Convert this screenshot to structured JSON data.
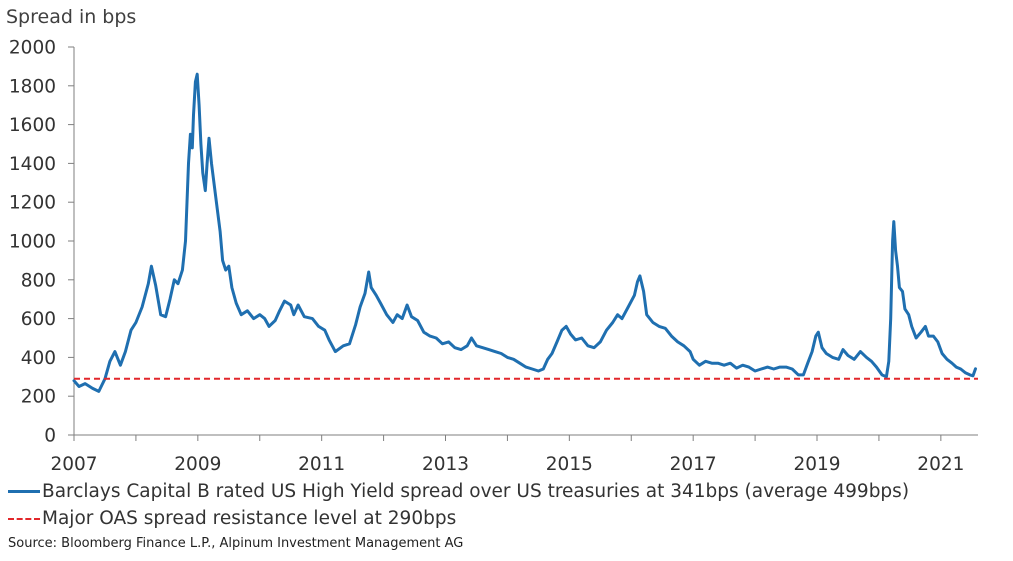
{
  "chart_data": {
    "type": "line",
    "title": "",
    "ylabel": "Spread in bps",
    "xlabel": "",
    "xlim": [
      2007.0,
      2021.6
    ],
    "ylim": [
      0,
      2000
    ],
    "yticks": [
      0,
      200,
      400,
      600,
      800,
      1000,
      1200,
      1400,
      1600,
      1800,
      2000
    ],
    "xticks": [
      2007,
      2009,
      2011,
      2013,
      2015,
      2017,
      2019,
      2021
    ],
    "grid": false,
    "legend_position": "bottom",
    "series": [
      {
        "name": "Barclays Capital B rated US High Yield spread over US treasuries at 341bps (average 499bps)",
        "color": "#1f6fb0",
        "style": "solid",
        "points": [
          [
            2007.0,
            280
          ],
          [
            2007.08,
            250
          ],
          [
            2007.18,
            265
          ],
          [
            2007.3,
            240
          ],
          [
            2007.4,
            225
          ],
          [
            2007.5,
            290
          ],
          [
            2007.58,
            380
          ],
          [
            2007.66,
            430
          ],
          [
            2007.75,
            360
          ],
          [
            2007.83,
            430
          ],
          [
            2007.92,
            540
          ],
          [
            2008.0,
            580
          ],
          [
            2008.1,
            660
          ],
          [
            2008.2,
            780
          ],
          [
            2008.25,
            870
          ],
          [
            2008.32,
            770
          ],
          [
            2008.4,
            620
          ],
          [
            2008.48,
            610
          ],
          [
            2008.55,
            700
          ],
          [
            2008.62,
            800
          ],
          [
            2008.68,
            780
          ],
          [
            2008.75,
            850
          ],
          [
            2008.8,
            1000
          ],
          [
            2008.85,
            1400
          ],
          [
            2008.88,
            1550
          ],
          [
            2008.91,
            1480
          ],
          [
            2008.93,
            1650
          ],
          [
            2008.96,
            1820
          ],
          [
            2008.99,
            1860
          ],
          [
            2009.02,
            1700
          ],
          [
            2009.05,
            1500
          ],
          [
            2009.08,
            1350
          ],
          [
            2009.12,
            1260
          ],
          [
            2009.15,
            1400
          ],
          [
            2009.18,
            1530
          ],
          [
            2009.22,
            1400
          ],
          [
            2009.3,
            1200
          ],
          [
            2009.36,
            1050
          ],
          [
            2009.4,
            900
          ],
          [
            2009.45,
            850
          ],
          [
            2009.5,
            870
          ],
          [
            2009.55,
            760
          ],
          [
            2009.62,
            680
          ],
          [
            2009.7,
            620
          ],
          [
            2009.8,
            640
          ],
          [
            2009.9,
            600
          ],
          [
            2010.0,
            620
          ],
          [
            2010.08,
            600
          ],
          [
            2010.15,
            560
          ],
          [
            2010.25,
            590
          ],
          [
            2010.32,
            640
          ],
          [
            2010.4,
            690
          ],
          [
            2010.5,
            670
          ],
          [
            2010.55,
            620
          ],
          [
            2010.62,
            670
          ],
          [
            2010.72,
            610
          ],
          [
            2010.85,
            600
          ],
          [
            2010.95,
            560
          ],
          [
            2011.05,
            540
          ],
          [
            2011.12,
            490
          ],
          [
            2011.22,
            430
          ],
          [
            2011.35,
            460
          ],
          [
            2011.45,
            470
          ],
          [
            2011.55,
            570
          ],
          [
            2011.62,
            660
          ],
          [
            2011.7,
            730
          ],
          [
            2011.76,
            840
          ],
          [
            2011.8,
            760
          ],
          [
            2011.88,
            720
          ],
          [
            2011.95,
            680
          ],
          [
            2012.05,
            620
          ],
          [
            2012.15,
            580
          ],
          [
            2012.22,
            620
          ],
          [
            2012.3,
            600
          ],
          [
            2012.38,
            670
          ],
          [
            2012.45,
            610
          ],
          [
            2012.55,
            590
          ],
          [
            2012.65,
            530
          ],
          [
            2012.75,
            510
          ],
          [
            2012.85,
            500
          ],
          [
            2012.95,
            470
          ],
          [
            2013.05,
            480
          ],
          [
            2013.15,
            450
          ],
          [
            2013.25,
            440
          ],
          [
            2013.35,
            460
          ],
          [
            2013.42,
            500
          ],
          [
            2013.5,
            460
          ],
          [
            2013.6,
            450
          ],
          [
            2013.7,
            440
          ],
          [
            2013.8,
            430
          ],
          [
            2013.9,
            420
          ],
          [
            2014.0,
            400
          ],
          [
            2014.1,
            390
          ],
          [
            2014.2,
            370
          ],
          [
            2014.3,
            350
          ],
          [
            2014.4,
            340
          ],
          [
            2014.5,
            330
          ],
          [
            2014.58,
            340
          ],
          [
            2014.65,
            390
          ],
          [
            2014.72,
            420
          ],
          [
            2014.8,
            480
          ],
          [
            2014.88,
            540
          ],
          [
            2014.95,
            560
          ],
          [
            2015.02,
            520
          ],
          [
            2015.1,
            490
          ],
          [
            2015.2,
            500
          ],
          [
            2015.3,
            460
          ],
          [
            2015.4,
            450
          ],
          [
            2015.5,
            480
          ],
          [
            2015.6,
            540
          ],
          [
            2015.7,
            580
          ],
          [
            2015.78,
            620
          ],
          [
            2015.85,
            600
          ],
          [
            2015.95,
            660
          ],
          [
            2016.05,
            720
          ],
          [
            2016.1,
            790
          ],
          [
            2016.14,
            820
          ],
          [
            2016.2,
            740
          ],
          [
            2016.25,
            620
          ],
          [
            2016.35,
            580
          ],
          [
            2016.45,
            560
          ],
          [
            2016.55,
            550
          ],
          [
            2016.65,
            510
          ],
          [
            2016.75,
            480
          ],
          [
            2016.85,
            460
          ],
          [
            2016.95,
            430
          ],
          [
            2017.0,
            390
          ],
          [
            2017.1,
            360
          ],
          [
            2017.2,
            380
          ],
          [
            2017.3,
            370
          ],
          [
            2017.4,
            370
          ],
          [
            2017.5,
            360
          ],
          [
            2017.6,
            370
          ],
          [
            2017.7,
            345
          ],
          [
            2017.8,
            360
          ],
          [
            2017.9,
            350
          ],
          [
            2018.0,
            330
          ],
          [
            2018.1,
            340
          ],
          [
            2018.2,
            350
          ],
          [
            2018.3,
            340
          ],
          [
            2018.4,
            350
          ],
          [
            2018.5,
            350
          ],
          [
            2018.6,
            340
          ],
          [
            2018.7,
            310
          ],
          [
            2018.78,
            310
          ],
          [
            2018.85,
            370
          ],
          [
            2018.92,
            430
          ],
          [
            2018.98,
            510
          ],
          [
            2019.02,
            530
          ],
          [
            2019.08,
            450
          ],
          [
            2019.15,
            420
          ],
          [
            2019.25,
            400
          ],
          [
            2019.35,
            390
          ],
          [
            2019.42,
            440
          ],
          [
            2019.5,
            410
          ],
          [
            2019.6,
            390
          ],
          [
            2019.7,
            430
          ],
          [
            2019.8,
            400
          ],
          [
            2019.88,
            380
          ],
          [
            2019.96,
            350
          ],
          [
            2020.05,
            310
          ],
          [
            2020.12,
            300
          ],
          [
            2020.16,
            380
          ],
          [
            2020.19,
            600
          ],
          [
            2020.22,
            1000
          ],
          [
            2020.24,
            1100
          ],
          [
            2020.27,
            950
          ],
          [
            2020.3,
            870
          ],
          [
            2020.33,
            760
          ],
          [
            2020.38,
            740
          ],
          [
            2020.42,
            650
          ],
          [
            2020.48,
            620
          ],
          [
            2020.53,
            560
          ],
          [
            2020.6,
            500
          ],
          [
            2020.68,
            530
          ],
          [
            2020.75,
            560
          ],
          [
            2020.8,
            510
          ],
          [
            2020.88,
            510
          ],
          [
            2020.95,
            480
          ],
          [
            2021.02,
            420
          ],
          [
            2021.1,
            390
          ],
          [
            2021.18,
            370
          ],
          [
            2021.25,
            350
          ],
          [
            2021.32,
            340
          ],
          [
            2021.4,
            320
          ],
          [
            2021.47,
            310
          ],
          [
            2021.52,
            305
          ],
          [
            2021.56,
            341
          ]
        ]
      },
      {
        "name": "Major OAS spread resistance level at 290bps",
        "color": "#e2272b",
        "style": "dashed",
        "points": [
          [
            2007.0,
            290
          ],
          [
            2021.6,
            290
          ]
        ]
      }
    ]
  },
  "labels": {
    "y_axis_title": "Spread in bps",
    "legend_hy": "Barclays Capital B rated US High Yield spread over US treasuries at 341bps (average 499bps)",
    "legend_oas": "Major OAS spread resistance level at 290bps",
    "source": "Source: Bloomberg Finance L.P., Alpinum Investment Management AG"
  }
}
